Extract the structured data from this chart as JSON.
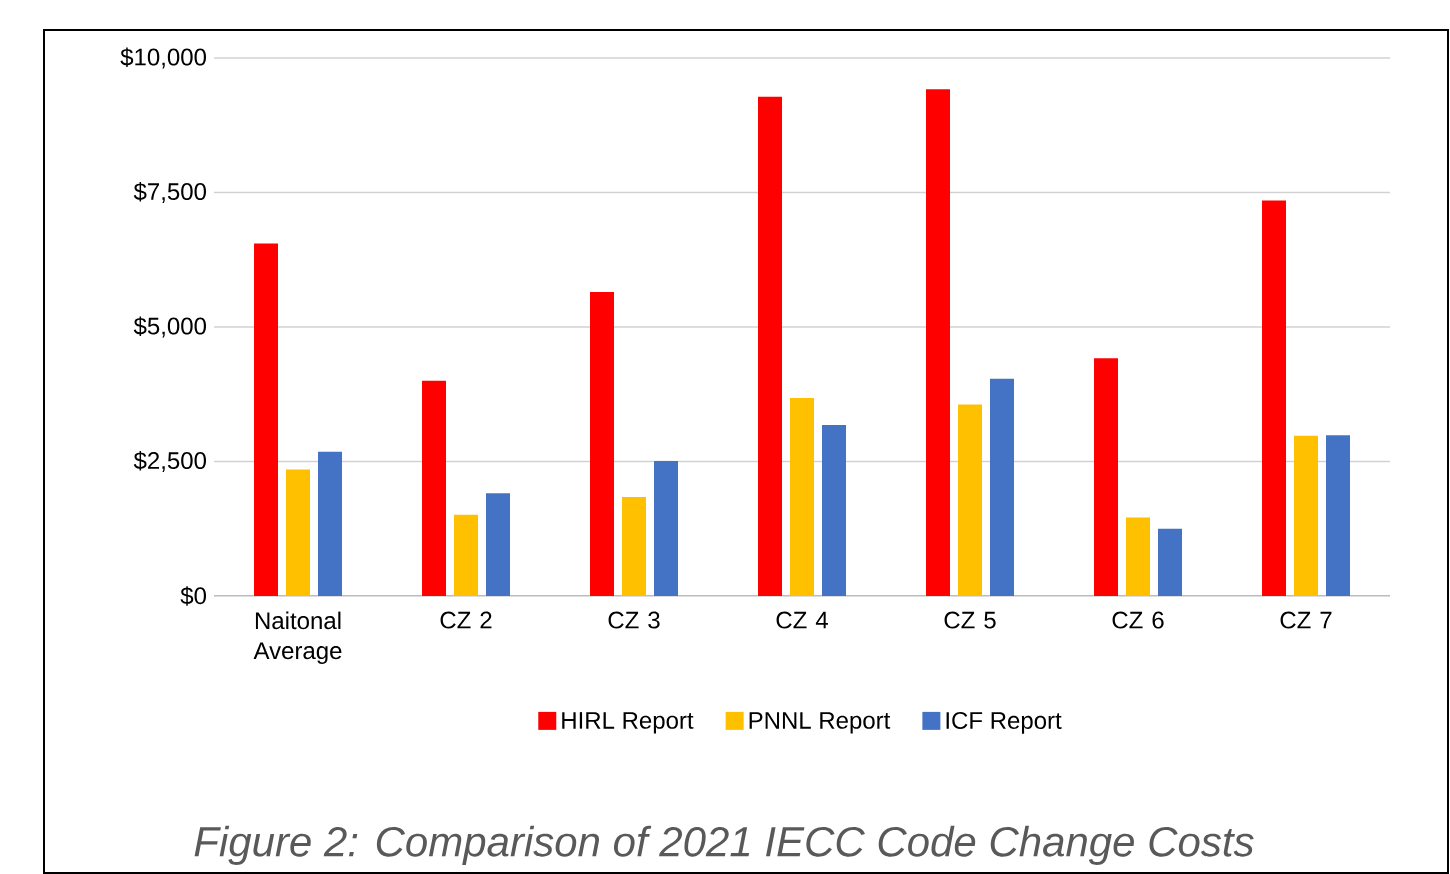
{
  "chart_data": {
    "type": "bar",
    "categories": [
      "Naitonal Average",
      "CZ 2",
      "CZ 3",
      "CZ 4",
      "CZ 5",
      "CZ 6",
      "CZ 7"
    ],
    "series": [
      {
        "name": "HIRL Report",
        "color": "#ff0000",
        "values": [
          6550,
          4000,
          5650,
          9280,
          9420,
          4420,
          7350
        ]
      },
      {
        "name": "PNNL Report",
        "color": "#ffc000",
        "values": [
          2350,
          1510,
          1840,
          3680,
          3560,
          1460,
          2980
        ]
      },
      {
        "name": "ICF Report",
        "color": "#4472c4",
        "values": [
          2680,
          1910,
          2510,
          3180,
          4040,
          1250,
          2990
        ]
      }
    ],
    "ylim": [
      0,
      10000
    ],
    "yticks": [
      {
        "value": 0,
        "label": "$0"
      },
      {
        "value": 2500,
        "label": "$2,500"
      },
      {
        "value": 5000,
        "label": "$5,000"
      },
      {
        "value": 7500,
        "label": "$7,500"
      },
      {
        "value": 10000,
        "label": "$10,000"
      }
    ],
    "grid": "y",
    "legend": "bottom",
    "annotations": [
      "Figure 2: Comparison of 2021 IECC Code Change Costs"
    ]
  }
}
